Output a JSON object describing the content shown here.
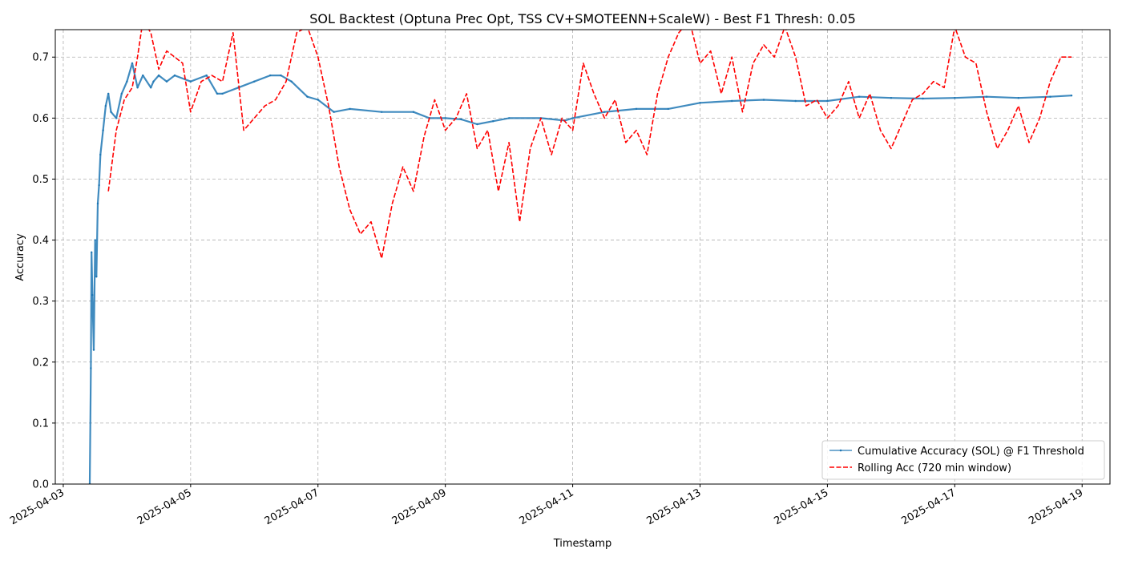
{
  "chart_data": {
    "type": "line",
    "title": "SOL Backtest (Optuna Prec Opt, TSS CV+SMOTEENN+ScaleW) - Best F1 Thresh: 0.05",
    "xlabel": "Timestamp",
    "ylabel": "Accuracy",
    "x_ticks": [
      "2025-04-03",
      "2025-04-05",
      "2025-04-07",
      "2025-04-09",
      "2025-04-11",
      "2025-04-13",
      "2025-04-15",
      "2025-04-17",
      "2025-04-19"
    ],
    "y_ticks": [
      "0.0",
      "0.1",
      "0.2",
      "0.3",
      "0.4",
      "0.5",
      "0.6",
      "0.7"
    ],
    "xlim": [
      "2025-04-02 21:00",
      "2025-04-19 10:30"
    ],
    "ylim": [
      0,
      0.745
    ],
    "grid": true,
    "legend_position": "lower right",
    "series": [
      {
        "name": "Cumulative Accuracy (SOL) @ F1 Threshold",
        "color": "#1f77b4",
        "style": "solid-markers",
        "x": [
          "2025-04-03 10:00",
          "2025-04-03 10:25",
          "2025-04-03 10:40",
          "2025-04-03 11:00",
          "2025-04-03 11:30",
          "2025-04-03 12:00",
          "2025-04-03 12:30",
          "2025-04-03 13:00",
          "2025-04-03 13:30",
          "2025-04-03 14:00",
          "2025-04-03 15:00",
          "2025-04-03 16:00",
          "2025-04-03 17:00",
          "2025-04-03 18:00",
          "2025-04-03 20:00",
          "2025-04-03 22:00",
          "2025-04-04 00:00",
          "2025-04-04 02:00",
          "2025-04-04 04:00",
          "2025-04-04 06:00",
          "2025-04-04 09:00",
          "2025-04-04 10:00",
          "2025-04-04 12:00",
          "2025-04-04 15:00",
          "2025-04-04 18:00",
          "2025-04-05 00:00",
          "2025-04-05 06:00",
          "2025-04-05 10:00",
          "2025-04-05 12:00",
          "2025-04-05 18:00",
          "2025-04-06 00:00",
          "2025-04-06 06:00",
          "2025-04-06 10:00",
          "2025-04-06 14:00",
          "2025-04-06 20:00",
          "2025-04-07 00:00",
          "2025-04-07 06:00",
          "2025-04-07 12:00",
          "2025-04-08 00:00",
          "2025-04-08 12:00",
          "2025-04-08 18:00",
          "2025-04-09 00:00",
          "2025-04-09 06:00",
          "2025-04-09 12:00",
          "2025-04-09 18:00",
          "2025-04-10 00:00",
          "2025-04-10 12:00",
          "2025-04-10 21:00",
          "2025-04-11 00:00",
          "2025-04-11 12:00",
          "2025-04-12 00:00",
          "2025-04-12 12:00",
          "2025-04-13 00:00",
          "2025-04-13 12:00",
          "2025-04-14 00:00",
          "2025-04-14 12:00",
          "2025-04-15 00:00",
          "2025-04-15 12:00",
          "2025-04-16 00:00",
          "2025-04-16 12:00",
          "2025-04-17 00:00",
          "2025-04-17 12:00",
          "2025-04-18 00:00",
          "2025-04-18 12:00",
          "2025-04-18 20:00"
        ],
        "y": [
          0.0,
          0.19,
          0.38,
          0.31,
          0.22,
          0.4,
          0.34,
          0.46,
          0.49,
          0.54,
          0.58,
          0.62,
          0.64,
          0.61,
          0.6,
          0.64,
          0.66,
          0.69,
          0.65,
          0.67,
          0.65,
          0.66,
          0.67,
          0.66,
          0.67,
          0.66,
          0.67,
          0.64,
          0.64,
          0.65,
          0.66,
          0.67,
          0.67,
          0.66,
          0.635,
          0.63,
          0.61,
          0.615,
          0.61,
          0.61,
          0.6,
          0.6,
          0.598,
          0.59,
          0.595,
          0.6,
          0.6,
          0.596,
          0.6,
          0.61,
          0.615,
          0.615,
          0.625,
          0.628,
          0.63,
          0.628,
          0.628,
          0.635,
          0.633,
          0.632,
          0.633,
          0.635,
          0.633,
          0.635,
          0.637
        ]
      },
      {
        "name": "Rolling Acc (720 min window)",
        "color": "#ff0000",
        "style": "dashed",
        "x": [
          "2025-04-03 17:00",
          "2025-04-03 20:00",
          "2025-04-03 23:00",
          "2025-04-04 02:00",
          "2025-04-04 04:00",
          "2025-04-04 06:00",
          "2025-04-04 09:00",
          "2025-04-04 12:00",
          "2025-04-04 15:00",
          "2025-04-04 18:00",
          "2025-04-04 21:00",
          "2025-04-05 00:00",
          "2025-04-05 04:00",
          "2025-04-05 08:00",
          "2025-04-05 12:00",
          "2025-04-05 16:00",
          "2025-04-05 20:00",
          "2025-04-06 00:00",
          "2025-04-06 04:00",
          "2025-04-06 08:00",
          "2025-04-06 12:00",
          "2025-04-06 16:00",
          "2025-04-06 20:00",
          "2025-04-07 00:00",
          "2025-04-07 04:00",
          "2025-04-07 08:00",
          "2025-04-07 12:00",
          "2025-04-07 16:00",
          "2025-04-07 20:00",
          "2025-04-08 00:00",
          "2025-04-08 04:00",
          "2025-04-08 08:00",
          "2025-04-08 12:00",
          "2025-04-08 16:00",
          "2025-04-08 20:00",
          "2025-04-09 00:00",
          "2025-04-09 04:00",
          "2025-04-09 08:00",
          "2025-04-09 12:00",
          "2025-04-09 16:00",
          "2025-04-09 20:00",
          "2025-04-10 00:00",
          "2025-04-10 04:00",
          "2025-04-10 08:00",
          "2025-04-10 12:00",
          "2025-04-10 16:00",
          "2025-04-10 20:00",
          "2025-04-11 00:00",
          "2025-04-11 04:00",
          "2025-04-11 08:00",
          "2025-04-11 12:00",
          "2025-04-11 16:00",
          "2025-04-11 20:00",
          "2025-04-12 00:00",
          "2025-04-12 04:00",
          "2025-04-12 08:00",
          "2025-04-12 12:00",
          "2025-04-12 16:00",
          "2025-04-12 20:00",
          "2025-04-13 00:00",
          "2025-04-13 04:00",
          "2025-04-13 08:00",
          "2025-04-13 12:00",
          "2025-04-13 16:00",
          "2025-04-13 20:00",
          "2025-04-14 00:00",
          "2025-04-14 04:00",
          "2025-04-14 08:00",
          "2025-04-14 12:00",
          "2025-04-14 16:00",
          "2025-04-14 20:00",
          "2025-04-15 00:00",
          "2025-04-15 04:00",
          "2025-04-15 08:00",
          "2025-04-15 12:00",
          "2025-04-15 16:00",
          "2025-04-15 20:00",
          "2025-04-16 00:00",
          "2025-04-16 04:00",
          "2025-04-16 08:00",
          "2025-04-16 12:00",
          "2025-04-16 16:00",
          "2025-04-16 20:00",
          "2025-04-17 00:00",
          "2025-04-17 04:00",
          "2025-04-17 08:00",
          "2025-04-17 12:00",
          "2025-04-17 16:00",
          "2025-04-17 20:00",
          "2025-04-18 00:00",
          "2025-04-18 04:00",
          "2025-04-18 08:00",
          "2025-04-18 12:00",
          "2025-04-18 16:00",
          "2025-04-18 20:00"
        ],
        "y": [
          0.48,
          0.58,
          0.63,
          0.65,
          0.7,
          0.76,
          0.74,
          0.68,
          0.71,
          0.7,
          0.69,
          0.61,
          0.66,
          0.67,
          0.66,
          0.74,
          0.58,
          0.6,
          0.62,
          0.63,
          0.66,
          0.74,
          0.75,
          0.7,
          0.62,
          0.52,
          0.45,
          0.41,
          0.43,
          0.37,
          0.46,
          0.52,
          0.48,
          0.57,
          0.63,
          0.58,
          0.6,
          0.64,
          0.55,
          0.58,
          0.48,
          0.56,
          0.43,
          0.55,
          0.6,
          0.54,
          0.6,
          0.58,
          0.69,
          0.64,
          0.6,
          0.63,
          0.56,
          0.58,
          0.54,
          0.64,
          0.7,
          0.74,
          0.76,
          0.69,
          0.71,
          0.64,
          0.7,
          0.61,
          0.69,
          0.72,
          0.7,
          0.75,
          0.7,
          0.62,
          0.63,
          0.6,
          0.62,
          0.66,
          0.6,
          0.64,
          0.58,
          0.55,
          0.59,
          0.63,
          0.64,
          0.66,
          0.65,
          0.75,
          0.7,
          0.69,
          0.61,
          0.55,
          0.58,
          0.62,
          0.56,
          0.6,
          0.66,
          0.7,
          0.7
        ]
      }
    ]
  }
}
